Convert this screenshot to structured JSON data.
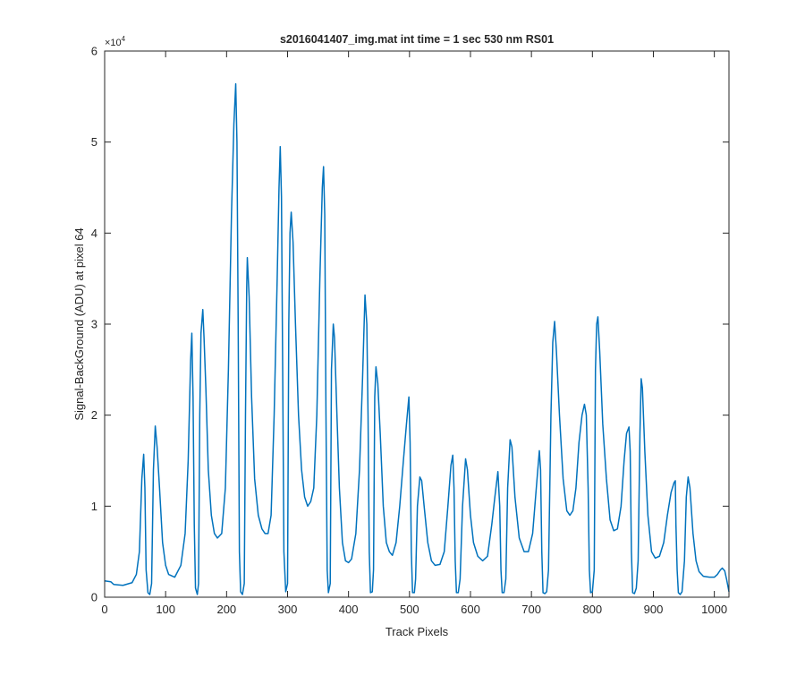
{
  "chart_data": {
    "type": "line",
    "title": "s2016041407_img.mat int time = 1 sec  530 nm RS01",
    "xlabel": "Track Pixels",
    "ylabel": "Signal-BackGround (ADU) at pixel 64",
    "y_multiplier_label": "×10",
    "y_multiplier_exponent": "4",
    "xlim": [
      0,
      1024
    ],
    "ylim": [
      0,
      60000
    ],
    "x_ticks": [
      0,
      100,
      200,
      300,
      400,
      500,
      600,
      700,
      800,
      900,
      1000
    ],
    "y_ticks": [
      0,
      10000,
      20000,
      30000,
      40000,
      50000,
      60000
    ],
    "x_tick_labels": [
      "0",
      "100",
      "200",
      "300",
      "400",
      "500",
      "600",
      "700",
      "800",
      "900",
      "1000"
    ],
    "y_tick_labels": [
      "0",
      "1",
      "2",
      "3",
      "4",
      "5",
      "6"
    ],
    "grid": false,
    "series": [
      {
        "color": "#0072BD",
        "points": [
          [
            0,
            1800
          ],
          [
            10,
            1700
          ],
          [
            15,
            1400
          ],
          [
            30,
            1300
          ],
          [
            45,
            1600
          ],
          [
            52,
            2500
          ],
          [
            57,
            5000
          ],
          [
            61,
            13000
          ],
          [
            64,
            15700
          ],
          [
            66,
            12000
          ],
          [
            68,
            3000
          ],
          [
            71,
            500
          ],
          [
            74,
            300
          ],
          [
            77,
            1500
          ],
          [
            80,
            14000
          ],
          [
            83,
            18800
          ],
          [
            86,
            16500
          ],
          [
            90,
            12000
          ],
          [
            95,
            6000
          ],
          [
            100,
            3500
          ],
          [
            105,
            2500
          ],
          [
            115,
            2200
          ],
          [
            125,
            3500
          ],
          [
            132,
            7000
          ],
          [
            137,
            15000
          ],
          [
            141,
            26000
          ],
          [
            143,
            29000
          ],
          [
            145,
            22000
          ],
          [
            147,
            8000
          ],
          [
            149,
            1000
          ],
          [
            152,
            300
          ],
          [
            154,
            1500
          ],
          [
            156,
            20000
          ],
          [
            158,
            29000
          ],
          [
            161,
            31600
          ],
          [
            163,
            28500
          ],
          [
            166,
            23000
          ],
          [
            170,
            14000
          ],
          [
            175,
            9000
          ],
          [
            180,
            7000
          ],
          [
            185,
            6500
          ],
          [
            192,
            7000
          ],
          [
            198,
            12000
          ],
          [
            203,
            25000
          ],
          [
            208,
            42000
          ],
          [
            212,
            52000
          ],
          [
            215,
            56400
          ],
          [
            217,
            50000
          ],
          [
            219,
            30000
          ],
          [
            221,
            5000
          ],
          [
            223,
            600
          ],
          [
            226,
            300
          ],
          [
            229,
            1500
          ],
          [
            231,
            20000
          ],
          [
            233,
            34000
          ],
          [
            234,
            37300
          ],
          [
            237,
            33000
          ],
          [
            241,
            22000
          ],
          [
            246,
            13000
          ],
          [
            252,
            9000
          ],
          [
            258,
            7500
          ],
          [
            263,
            7000
          ],
          [
            268,
            7000
          ],
          [
            273,
            9000
          ],
          [
            278,
            20000
          ],
          [
            283,
            35000
          ],
          [
            286,
            45000
          ],
          [
            288,
            49500
          ],
          [
            290,
            44000
          ],
          [
            292,
            25000
          ],
          [
            294,
            5000
          ],
          [
            297,
            600
          ],
          [
            300,
            1500
          ],
          [
            302,
            30000
          ],
          [
            304,
            40000
          ],
          [
            306,
            42300
          ],
          [
            309,
            39000
          ],
          [
            313,
            30000
          ],
          [
            318,
            20000
          ],
          [
            323,
            14000
          ],
          [
            328,
            11000
          ],
          [
            333,
            10000
          ],
          [
            338,
            10500
          ],
          [
            343,
            12000
          ],
          [
            348,
            20000
          ],
          [
            353,
            35000
          ],
          [
            357,
            45000
          ],
          [
            359,
            47300
          ],
          [
            361,
            42000
          ],
          [
            363,
            20000
          ],
          [
            365,
            3000
          ],
          [
            367,
            500
          ],
          [
            370,
            1500
          ],
          [
            372,
            25000
          ],
          [
            375,
            30000
          ],
          [
            377,
            28500
          ],
          [
            381,
            20000
          ],
          [
            385,
            12000
          ],
          [
            390,
            6000
          ],
          [
            395,
            4000
          ],
          [
            400,
            3800
          ],
          [
            405,
            4200
          ],
          [
            412,
            7000
          ],
          [
            418,
            14000
          ],
          [
            423,
            24000
          ],
          [
            427,
            33200
          ],
          [
            430,
            30000
          ],
          [
            432,
            20000
          ],
          [
            434,
            5000
          ],
          [
            436,
            500
          ],
          [
            439,
            600
          ],
          [
            441,
            3000
          ],
          [
            443,
            22000
          ],
          [
            445,
            25300
          ],
          [
            448,
            23500
          ],
          [
            452,
            18000
          ],
          [
            457,
            10000
          ],
          [
            462,
            6000
          ],
          [
            467,
            5000
          ],
          [
            472,
            4600
          ],
          [
            478,
            6000
          ],
          [
            484,
            10000
          ],
          [
            490,
            15000
          ],
          [
            495,
            19000
          ],
          [
            499,
            22000
          ],
          [
            501,
            17000
          ],
          [
            503,
            5000
          ],
          [
            505,
            500
          ],
          [
            508,
            500
          ],
          [
            510,
            2000
          ],
          [
            513,
            10000
          ],
          [
            517,
            13200
          ],
          [
            520,
            12800
          ],
          [
            524,
            10000
          ],
          [
            530,
            6000
          ],
          [
            536,
            4000
          ],
          [
            542,
            3500
          ],
          [
            550,
            3600
          ],
          [
            557,
            5000
          ],
          [
            563,
            10000
          ],
          [
            568,
            14500
          ],
          [
            571,
            15600
          ],
          [
            573,
            12000
          ],
          [
            575,
            4000
          ],
          [
            577,
            500
          ],
          [
            580,
            500
          ],
          [
            583,
            2000
          ],
          [
            587,
            10000
          ],
          [
            592,
            15200
          ],
          [
            595,
            14000
          ],
          [
            600,
            9000
          ],
          [
            605,
            6000
          ],
          [
            612,
            4500
          ],
          [
            620,
            4000
          ],
          [
            628,
            4500
          ],
          [
            635,
            8000
          ],
          [
            640,
            11000
          ],
          [
            645,
            13800
          ],
          [
            648,
            10000
          ],
          [
            650,
            3000
          ],
          [
            652,
            500
          ],
          [
            655,
            500
          ],
          [
            658,
            2000
          ],
          [
            661,
            12000
          ],
          [
            665,
            17300
          ],
          [
            668,
            16500
          ],
          [
            673,
            11000
          ],
          [
            680,
            6500
          ],
          [
            688,
            5000
          ],
          [
            695,
            5000
          ],
          [
            702,
            7000
          ],
          [
            708,
            12000
          ],
          [
            713,
            16100
          ],
          [
            715,
            14000
          ],
          [
            717,
            5000
          ],
          [
            719,
            500
          ],
          [
            722,
            400
          ],
          [
            725,
            600
          ],
          [
            728,
            3000
          ],
          [
            732,
            20000
          ],
          [
            735,
            28000
          ],
          [
            738,
            30300
          ],
          [
            741,
            27000
          ],
          [
            746,
            20000
          ],
          [
            752,
            13000
          ],
          [
            758,
            9500
          ],
          [
            763,
            9000
          ],
          [
            768,
            9500
          ],
          [
            773,
            12000
          ],
          [
            778,
            17000
          ],
          [
            783,
            20000
          ],
          [
            787,
            21200
          ],
          [
            790,
            20000
          ],
          [
            793,
            12000
          ],
          [
            795,
            3000
          ],
          [
            797,
            500
          ],
          [
            800,
            600
          ],
          [
            803,
            3000
          ],
          [
            805,
            25000
          ],
          [
            807,
            30000
          ],
          [
            809,
            30800
          ],
          [
            812,
            27000
          ],
          [
            817,
            19000
          ],
          [
            823,
            13000
          ],
          [
            829,
            8500
          ],
          [
            835,
            7300
          ],
          [
            841,
            7500
          ],
          [
            847,
            10000
          ],
          [
            852,
            15000
          ],
          [
            856,
            18000
          ],
          [
            860,
            18700
          ],
          [
            862,
            16000
          ],
          [
            864,
            5000
          ],
          [
            866,
            500
          ],
          [
            869,
            400
          ],
          [
            872,
            1000
          ],
          [
            875,
            4000
          ],
          [
            878,
            18000
          ],
          [
            880,
            24000
          ],
          [
            882,
            23000
          ],
          [
            886,
            16000
          ],
          [
            891,
            9000
          ],
          [
            897,
            5000
          ],
          [
            903,
            4300
          ],
          [
            910,
            4500
          ],
          [
            917,
            6000
          ],
          [
            923,
            9000
          ],
          [
            929,
            11500
          ],
          [
            934,
            12600
          ],
          [
            936,
            12800
          ],
          [
            937,
            8000
          ],
          [
            939,
            3000
          ],
          [
            941,
            500
          ],
          [
            944,
            300
          ],
          [
            947,
            600
          ],
          [
            951,
            4000
          ],
          [
            954,
            11000
          ],
          [
            957,
            13200
          ],
          [
            960,
            12000
          ],
          [
            965,
            7000
          ],
          [
            970,
            4000
          ],
          [
            975,
            2800
          ],
          [
            982,
            2300
          ],
          [
            992,
            2200
          ],
          [
            1000,
            2200
          ],
          [
            1005,
            2500
          ],
          [
            1010,
            3000
          ],
          [
            1013,
            3200
          ],
          [
            1017,
            2900
          ],
          [
            1020,
            2000
          ],
          [
            1024,
            600
          ]
        ]
      }
    ]
  }
}
